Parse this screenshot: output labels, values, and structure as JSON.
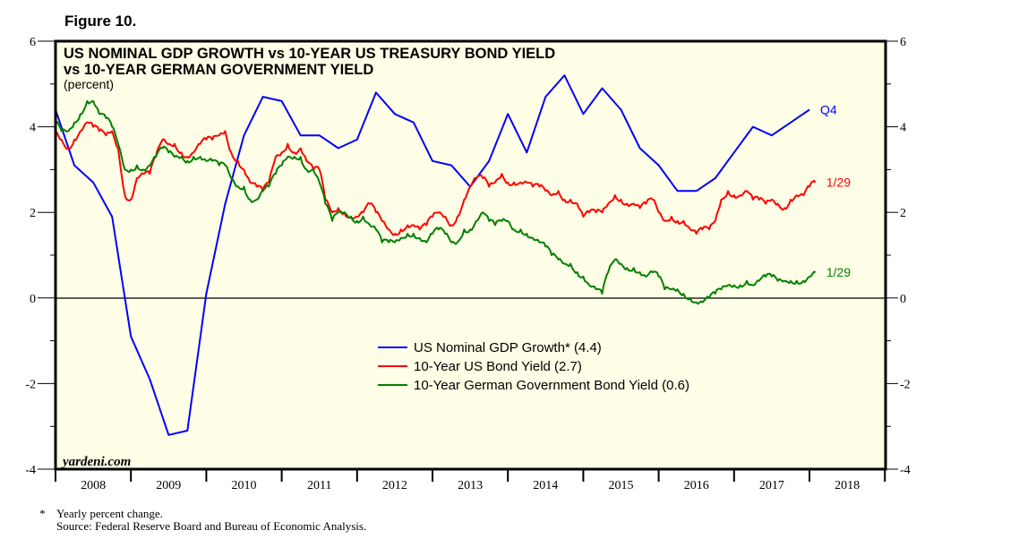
{
  "figure_label": "Figure 10.",
  "footnote": {
    "marker": "*",
    "note": "Yearly percent change.",
    "source": "Source: Federal Reserve Board and Bureau of Economic Analysis."
  },
  "chart_data": {
    "type": "line",
    "title_line1": "US NOMINAL GDP GROWTH vs 10-YEAR US TREASURY BOND YIELD",
    "title_line2": "vs 10-YEAR GERMAN GOVERNMENT YIELD",
    "subtitle": "(percent)",
    "watermark": "yardeni.com",
    "xlabel": "",
    "ylabel": "percent",
    "x_range": [
      2008.0,
      2019.0
    ],
    "ylim": [
      -4,
      6
    ],
    "y_ticks_major": [
      -4,
      -2,
      0,
      2,
      4,
      6
    ],
    "y_ticks_minor": [
      -3,
      -1,
      1,
      3,
      5
    ],
    "x_tick_labels": [
      "2008",
      "2009",
      "2010",
      "2011",
      "2012",
      "2013",
      "2014",
      "2015",
      "2016",
      "2017",
      "2018"
    ],
    "zero_line": true,
    "grid": false,
    "background": "#fffee6",
    "legend": {
      "position": "center-bottom",
      "entries": [
        {
          "label": "US Nominal GDP Growth* (4.4)",
          "color": "#0000ff"
        },
        {
          "label": "10-Year US Bond Yield (2.7)",
          "color": "#ff0000"
        },
        {
          "label": "10-Year German Government Bond Yield (0.6)",
          "color": "#008000"
        }
      ]
    },
    "series": [
      {
        "name": "US Nominal GDP Growth",
        "color": "#0000ff",
        "end_label": "Q4",
        "frequency": "quarterly",
        "x": [
          2008.0,
          2008.25,
          2008.5,
          2008.75,
          2009.0,
          2009.25,
          2009.5,
          2009.75,
          2010.0,
          2010.25,
          2010.5,
          2010.75,
          2011.0,
          2011.25,
          2011.5,
          2011.75,
          2012.0,
          2012.25,
          2012.5,
          2012.75,
          2013.0,
          2013.25,
          2013.5,
          2013.75,
          2014.0,
          2014.25,
          2014.5,
          2014.75,
          2015.0,
          2015.25,
          2015.5,
          2015.75,
          2016.0,
          2016.25,
          2016.5,
          2016.75,
          2017.0,
          2017.25,
          2017.5,
          2017.75,
          2018.0
        ],
        "values": [
          4.4,
          3.1,
          2.7,
          1.9,
          -0.9,
          -1.9,
          -3.2,
          -3.1,
          0.1,
          2.2,
          3.8,
          4.7,
          4.6,
          3.8,
          3.8,
          3.5,
          3.7,
          4.8,
          4.3,
          4.1,
          3.2,
          3.1,
          2.6,
          3.2,
          4.3,
          3.4,
          4.7,
          5.2,
          4.3,
          4.9,
          4.4,
          3.5,
          3.1,
          2.5,
          2.5,
          2.8,
          3.4,
          4.0,
          3.8,
          4.1,
          4.4
        ]
      },
      {
        "name": "10-Year US Bond Yield",
        "color": "#ff0000",
        "end_label": "1/29",
        "frequency": "monthly (approx.)",
        "x": [
          2008.0,
          2008.08,
          2008.17,
          2008.25,
          2008.33,
          2008.42,
          2008.5,
          2008.58,
          2008.67,
          2008.75,
          2008.83,
          2008.92,
          2009.0,
          2009.08,
          2009.17,
          2009.25,
          2009.33,
          2009.42,
          2009.5,
          2009.58,
          2009.67,
          2009.75,
          2009.83,
          2009.92,
          2010.0,
          2010.08,
          2010.17,
          2010.25,
          2010.33,
          2010.42,
          2010.5,
          2010.58,
          2010.67,
          2010.75,
          2010.83,
          2010.92,
          2011.0,
          2011.08,
          2011.17,
          2011.25,
          2011.33,
          2011.42,
          2011.5,
          2011.58,
          2011.67,
          2011.75,
          2011.83,
          2011.92,
          2012.0,
          2012.08,
          2012.17,
          2012.25,
          2012.33,
          2012.42,
          2012.5,
          2012.58,
          2012.67,
          2012.75,
          2012.83,
          2012.92,
          2013.0,
          2013.08,
          2013.17,
          2013.25,
          2013.33,
          2013.42,
          2013.5,
          2013.58,
          2013.67,
          2013.75,
          2013.83,
          2013.92,
          2014.0,
          2014.08,
          2014.17,
          2014.25,
          2014.33,
          2014.42,
          2014.5,
          2014.58,
          2014.67,
          2014.75,
          2014.83,
          2014.92,
          2015.0,
          2015.08,
          2015.17,
          2015.25,
          2015.33,
          2015.42,
          2015.5,
          2015.58,
          2015.67,
          2015.75,
          2015.83,
          2015.92,
          2016.0,
          2016.08,
          2016.17,
          2016.25,
          2016.33,
          2016.42,
          2016.5,
          2016.58,
          2016.67,
          2016.75,
          2016.83,
          2016.92,
          2017.0,
          2017.08,
          2017.17,
          2017.25,
          2017.33,
          2017.42,
          2017.5,
          2017.58,
          2017.67,
          2017.75,
          2017.83,
          2017.92,
          2018.0,
          2018.08
        ],
        "values": [
          3.9,
          3.7,
          3.5,
          3.7,
          3.9,
          4.1,
          4.0,
          3.9,
          3.8,
          3.9,
          3.5,
          2.4,
          2.3,
          2.8,
          2.9,
          2.9,
          3.3,
          3.7,
          3.6,
          3.6,
          3.4,
          3.3,
          3.4,
          3.6,
          3.7,
          3.7,
          3.8,
          3.9,
          3.4,
          3.2,
          3.0,
          2.7,
          2.6,
          2.5,
          2.7,
          3.3,
          3.4,
          3.6,
          3.4,
          3.5,
          3.2,
          3.0,
          3.0,
          2.3,
          2.0,
          2.1,
          2.0,
          1.9,
          1.9,
          2.0,
          2.2,
          2.0,
          1.8,
          1.6,
          1.5,
          1.6,
          1.7,
          1.7,
          1.6,
          1.7,
          1.9,
          2.0,
          1.9,
          1.7,
          1.9,
          2.3,
          2.6,
          2.8,
          2.8,
          2.6,
          2.7,
          2.9,
          2.7,
          2.7,
          2.7,
          2.7,
          2.6,
          2.6,
          2.5,
          2.4,
          2.5,
          2.3,
          2.3,
          2.2,
          1.9,
          2.0,
          2.0,
          2.0,
          2.2,
          2.4,
          2.3,
          2.2,
          2.2,
          2.1,
          2.2,
          2.3,
          2.0,
          1.8,
          1.9,
          1.8,
          1.8,
          1.6,
          1.5,
          1.6,
          1.6,
          1.8,
          2.3,
          2.5,
          2.4,
          2.4,
          2.5,
          2.3,
          2.3,
          2.2,
          2.3,
          2.2,
          2.1,
          2.3,
          2.4,
          2.4,
          2.6,
          2.7
        ]
      },
      {
        "name": "10-Year German Government Bond Yield",
        "color": "#008000",
        "end_label": "1/29",
        "frequency": "monthly (approx.)",
        "x": [
          2008.0,
          2008.08,
          2008.17,
          2008.25,
          2008.33,
          2008.42,
          2008.5,
          2008.58,
          2008.67,
          2008.75,
          2008.83,
          2008.92,
          2009.0,
          2009.08,
          2009.17,
          2009.25,
          2009.33,
          2009.42,
          2009.5,
          2009.58,
          2009.67,
          2009.75,
          2009.83,
          2009.92,
          2010.0,
          2010.08,
          2010.17,
          2010.25,
          2010.33,
          2010.42,
          2010.5,
          2010.58,
          2010.67,
          2010.75,
          2010.83,
          2010.92,
          2011.0,
          2011.08,
          2011.17,
          2011.25,
          2011.33,
          2011.42,
          2011.5,
          2011.58,
          2011.67,
          2011.75,
          2011.83,
          2011.92,
          2012.0,
          2012.08,
          2012.17,
          2012.25,
          2012.33,
          2012.42,
          2012.5,
          2012.58,
          2012.67,
          2012.75,
          2012.83,
          2012.92,
          2013.0,
          2013.08,
          2013.17,
          2013.25,
          2013.33,
          2013.42,
          2013.5,
          2013.58,
          2013.67,
          2013.75,
          2013.83,
          2013.92,
          2014.0,
          2014.08,
          2014.17,
          2014.25,
          2014.33,
          2014.42,
          2014.5,
          2014.58,
          2014.67,
          2014.75,
          2014.83,
          2014.92,
          2015.0,
          2015.08,
          2015.17,
          2015.25,
          2015.33,
          2015.42,
          2015.5,
          2015.58,
          2015.67,
          2015.75,
          2015.83,
          2015.92,
          2016.0,
          2016.08,
          2016.17,
          2016.25,
          2016.33,
          2016.42,
          2016.5,
          2016.58,
          2016.67,
          2016.75,
          2016.83,
          2016.92,
          2017.0,
          2017.08,
          2017.17,
          2017.25,
          2017.33,
          2017.42,
          2017.5,
          2017.58,
          2017.67,
          2017.75,
          2017.83,
          2017.92,
          2018.0,
          2018.08
        ],
        "values": [
          4.1,
          3.9,
          3.9,
          4.1,
          4.3,
          4.6,
          4.6,
          4.3,
          4.2,
          4.0,
          3.6,
          3.0,
          3.0,
          3.1,
          3.0,
          3.1,
          3.3,
          3.5,
          3.4,
          3.3,
          3.3,
          3.2,
          3.3,
          3.3,
          3.2,
          3.2,
          3.1,
          3.1,
          2.8,
          2.6,
          2.6,
          2.3,
          2.3,
          2.5,
          2.6,
          2.9,
          3.1,
          3.3,
          3.3,
          3.3,
          3.0,
          3.0,
          2.7,
          2.2,
          1.8,
          2.0,
          2.0,
          1.9,
          1.8,
          1.9,
          1.7,
          1.6,
          1.3,
          1.3,
          1.3,
          1.4,
          1.5,
          1.5,
          1.4,
          1.3,
          1.5,
          1.6,
          1.5,
          1.3,
          1.3,
          1.6,
          1.6,
          1.8,
          2.0,
          1.8,
          1.7,
          1.8,
          1.8,
          1.6,
          1.6,
          1.5,
          1.4,
          1.3,
          1.2,
          1.0,
          0.9,
          0.8,
          0.8,
          0.6,
          0.5,
          0.3,
          0.2,
          0.1,
          0.6,
          0.9,
          0.8,
          0.7,
          0.7,
          0.6,
          0.5,
          0.6,
          0.5,
          0.2,
          0.2,
          0.2,
          0.1,
          0.0,
          -0.1,
          -0.1,
          0.0,
          0.1,
          0.2,
          0.3,
          0.3,
          0.3,
          0.4,
          0.3,
          0.4,
          0.5,
          0.5,
          0.4,
          0.4,
          0.4,
          0.4,
          0.4,
          0.5,
          0.6
        ]
      }
    ]
  }
}
